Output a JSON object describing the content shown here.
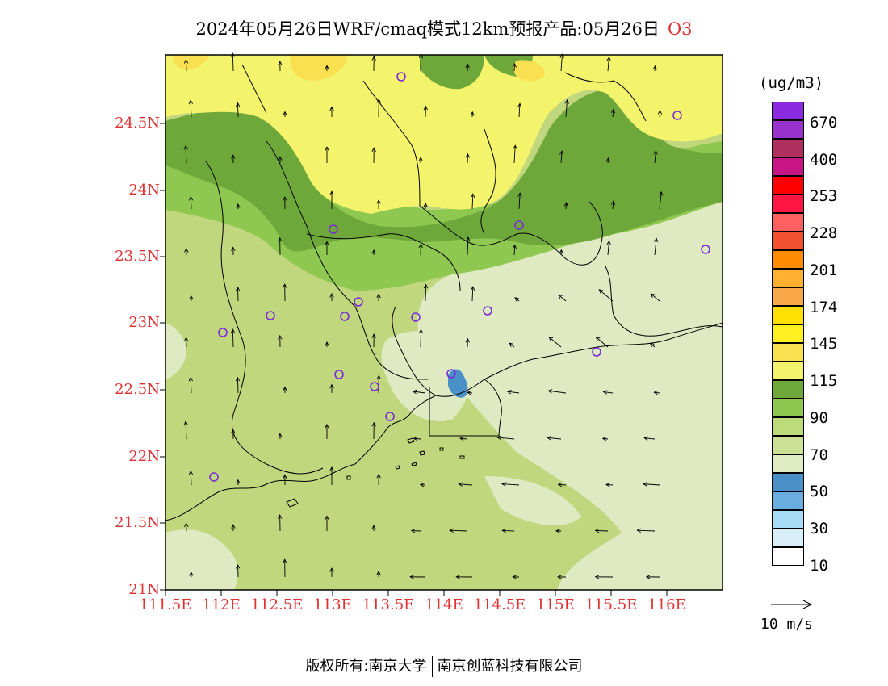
{
  "title": {
    "main": "2024年05月26日WRF/cmaq模式12km预报产品:05月26日",
    "species": "O3"
  },
  "map": {
    "lat_labels": [
      "24.5N",
      "24N",
      "23.5N",
      "23N",
      "22.5N",
      "22N",
      "21.5N",
      "21N"
    ],
    "lon_labels": [
      "111.5E",
      "112E",
      "112.5E",
      "113E",
      "113.5E",
      "114E",
      "114.5E",
      "115E",
      "115.5E",
      "116E"
    ],
    "station_marker": "circle-station-icon",
    "wind_marker": "wind-arrow-icon"
  },
  "legend": {
    "unit": "(ug/m3)",
    "labels": [
      "670",
      "400",
      "253",
      "228",
      "201",
      "174",
      "145",
      "115",
      "90",
      "70",
      "50",
      "30",
      "10"
    ],
    "colors": [
      "#8a2be2",
      "#9932cc",
      "#b03060",
      "#c71585",
      "#ff0000",
      "#ff1744",
      "#ff6060",
      "#f05030",
      "#ff8c00",
      "#ffb030",
      "#f8a848",
      "#ffe000",
      "#ffee20",
      "#f8e050",
      "#f4f46c",
      "#6ea83a",
      "#8ec850",
      "#bcdc7c",
      "#cce096",
      "#e0ecc4",
      "#4a90c8",
      "#6aaee0",
      "#a8dcf4",
      "#d8eef8",
      "#ffffff"
    ]
  },
  "wind_reference": {
    "label": "10  m/s"
  },
  "footer": {
    "left": "版权所有:南京大学",
    "right": "南京创蓝科技有限公司"
  }
}
